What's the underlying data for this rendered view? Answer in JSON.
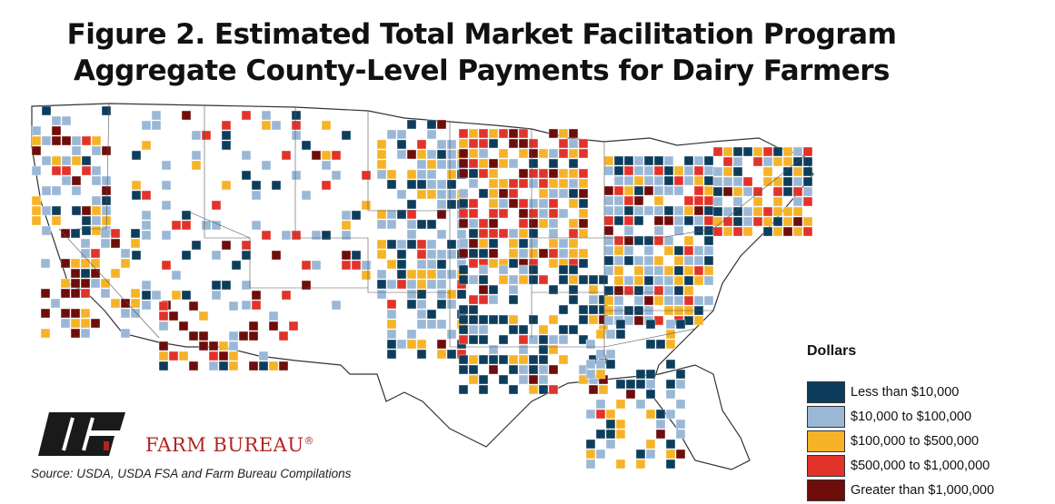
{
  "title_line1": "Figure 2. Estimated Total Market Facilitation Program",
  "title_line2": "Aggregate County-Level Payments for Dairy Farmers",
  "legend": {
    "title": "Dollars",
    "items": [
      {
        "label": "Less than $10,000",
        "color": "#0d3d5c"
      },
      {
        "label": "$10,000 to $100,000",
        "color": "#9ab8d6"
      },
      {
        "label": "$100,000 to $500,000",
        "color": "#f6b327"
      },
      {
        "label": "$500,000 to $1,000,000",
        "color": "#e2332a"
      },
      {
        "label": "Greater than $1,000,000",
        "color": "#6e0d0a"
      }
    ]
  },
  "brand": "FARM BUREAU",
  "brand_mark": "®",
  "logo_text": "FB",
  "source": "Source: USDA, USDA FSA and Farm Bureau Compilations"
}
